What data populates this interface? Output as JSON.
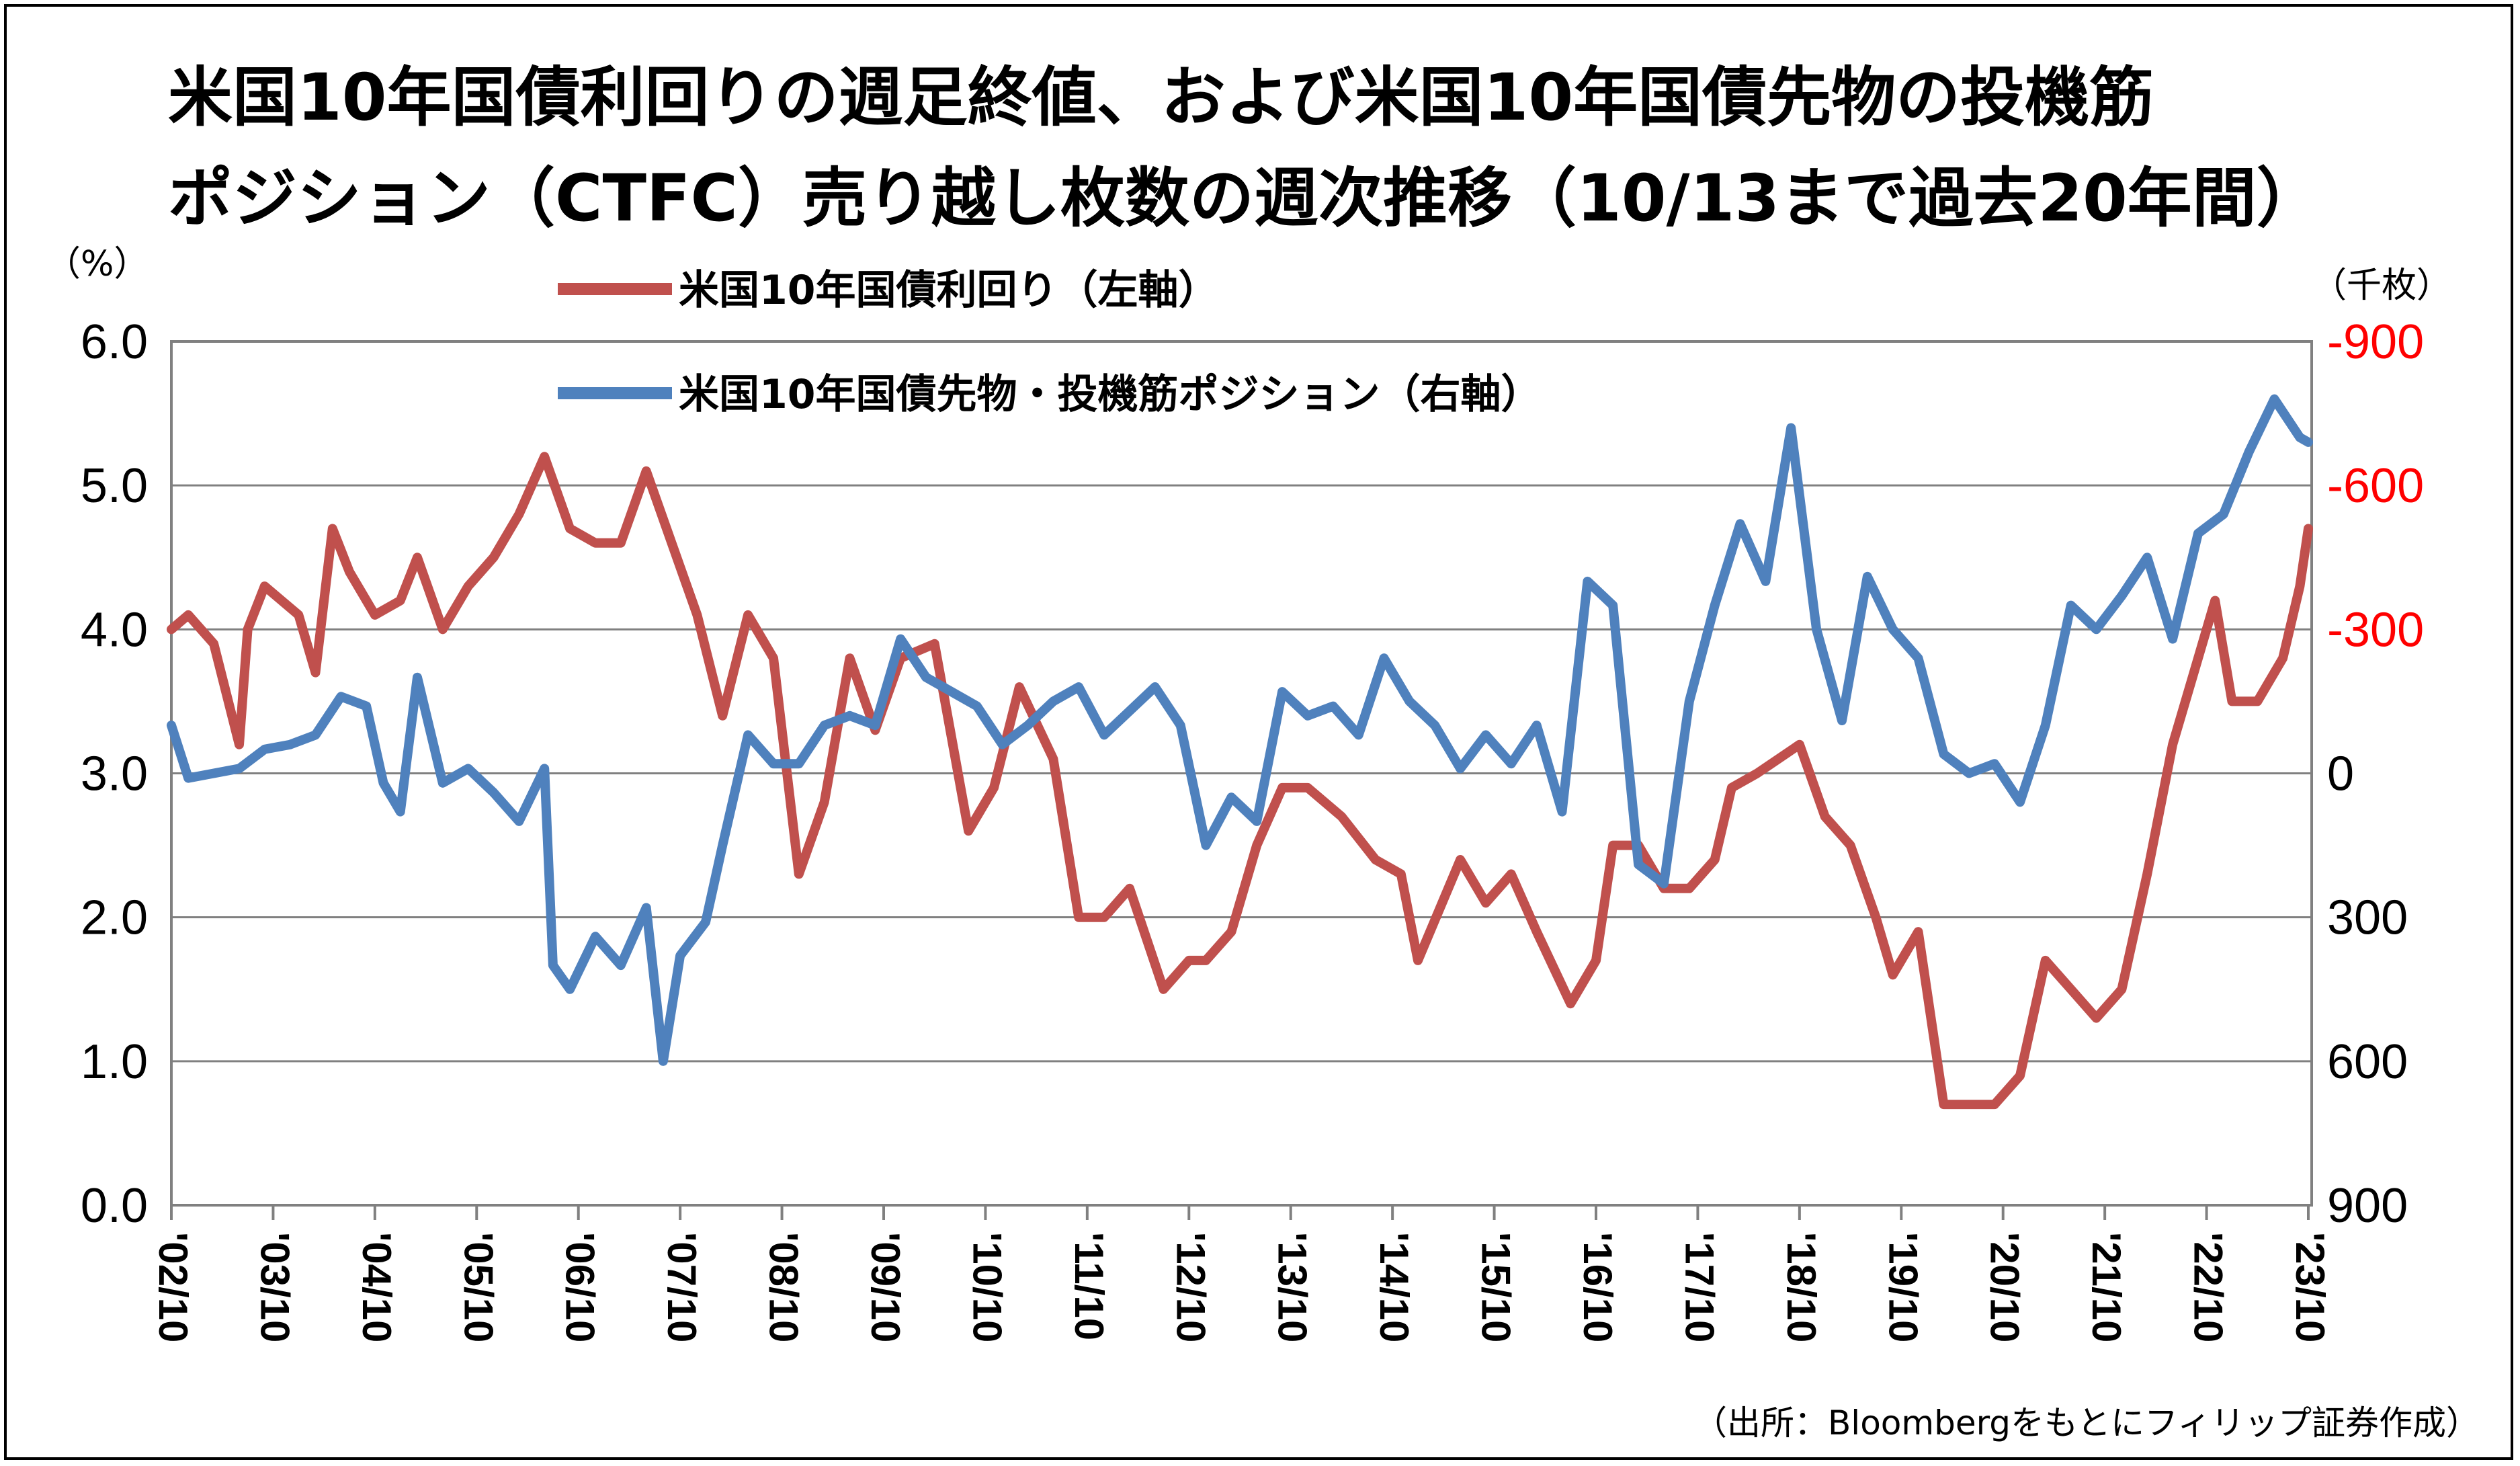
{
  "title_line1": "米国10年国債利回りの週足終値、および米国10年国債先物の投機筋",
  "title_line2": "ポジション（CTFC）売り越し枚数の週次推移（10/13まで過去20年間）",
  "source": "（出所：Bloombergをもとにフィリップ証券作成）",
  "chart_data": {
    "type": "line",
    "title": "米国10年国債利回りの週足終値、および米国10年国債先物の投機筋ポジション（CTFC）売り越し枚数の週次推移（10/13まで過去20年間）",
    "left_axis": {
      "unit_label": "（%）",
      "ticks": [
        "6.0",
        "5.0",
        "4.0",
        "3.0",
        "2.0",
        "1.0",
        "0.0"
      ],
      "range": [
        0,
        6
      ]
    },
    "right_axis": {
      "unit_label": "（千枚）",
      "ticks": [
        "-900",
        "-600",
        "-300",
        "0",
        "300",
        "600",
        "900"
      ],
      "range": [
        900,
        -900
      ],
      "inverted": true,
      "negative_tick_color": "#ff0000"
    },
    "x_ticks": [
      "'02/10",
      "'03/10",
      "'04/10",
      "'05/10",
      "'06/10",
      "'07/10",
      "'08/10",
      "'09/10",
      "'10/10",
      "'11/10",
      "'12/10",
      "'13/10",
      "'14/10",
      "'15/10",
      "'16/10",
      "'17/10",
      "'18/10",
      "'19/10",
      "'20/10",
      "'21/10",
      "'22/10",
      "'23/10"
    ],
    "legend_placement": "top-left",
    "grid": "horizontal",
    "series": [
      {
        "name": "米国10年国債利回り（左軸）",
        "axis": "left",
        "color": "#c0504d",
        "points": [
          [
            "2002-10",
            4.0
          ],
          [
            "2002-12",
            4.1
          ],
          [
            "2003-03",
            3.9
          ],
          [
            "2003-06",
            3.2
          ],
          [
            "2003-07",
            4.0
          ],
          [
            "2003-09",
            4.3
          ],
          [
            "2004-01",
            4.1
          ],
          [
            "2004-03",
            3.7
          ],
          [
            "2004-05",
            4.7
          ],
          [
            "2004-07",
            4.4
          ],
          [
            "2004-10",
            4.1
          ],
          [
            "2005-01",
            4.2
          ],
          [
            "2005-03",
            4.5
          ],
          [
            "2005-06",
            4.0
          ],
          [
            "2005-09",
            4.3
          ],
          [
            "2005-12",
            4.5
          ],
          [
            "2006-03",
            4.8
          ],
          [
            "2006-06",
            5.2
          ],
          [
            "2006-09",
            4.7
          ],
          [
            "2006-12",
            4.6
          ],
          [
            "2007-03",
            4.6
          ],
          [
            "2007-06",
            5.1
          ],
          [
            "2007-09",
            4.6
          ],
          [
            "2007-12",
            4.1
          ],
          [
            "2008-03",
            3.4
          ],
          [
            "2008-06",
            4.1
          ],
          [
            "2008-09",
            3.8
          ],
          [
            "2008-12",
            2.3
          ],
          [
            "2009-03",
            2.8
          ],
          [
            "2009-06",
            3.8
          ],
          [
            "2009-09",
            3.3
          ],
          [
            "2009-12",
            3.8
          ],
          [
            "2010-04",
            3.9
          ],
          [
            "2010-08",
            2.6
          ],
          [
            "2010-11",
            2.9
          ],
          [
            "2011-02",
            3.6
          ],
          [
            "2011-06",
            3.1
          ],
          [
            "2011-09",
            2.0
          ],
          [
            "2011-12",
            2.0
          ],
          [
            "2012-03",
            2.2
          ],
          [
            "2012-07",
            1.5
          ],
          [
            "2012-10",
            1.7
          ],
          [
            "2012-12",
            1.7
          ],
          [
            "2013-03",
            1.9
          ],
          [
            "2013-06",
            2.5
          ],
          [
            "2013-09",
            2.9
          ],
          [
            "2013-12",
            2.9
          ],
          [
            "2014-04",
            2.7
          ],
          [
            "2014-08",
            2.4
          ],
          [
            "2014-11",
            2.3
          ],
          [
            "2015-01",
            1.7
          ],
          [
            "2015-06",
            2.4
          ],
          [
            "2015-09",
            2.1
          ],
          [
            "2015-12",
            2.3
          ],
          [
            "2016-03",
            1.9
          ],
          [
            "2016-07",
            1.4
          ],
          [
            "2016-10",
            1.7
          ],
          [
            "2016-12",
            2.5
          ],
          [
            "2017-03",
            2.5
          ],
          [
            "2017-06",
            2.2
          ],
          [
            "2017-09",
            2.2
          ],
          [
            "2017-12",
            2.4
          ],
          [
            "2018-02",
            2.9
          ],
          [
            "2018-05",
            3.0
          ],
          [
            "2018-10",
            3.2
          ],
          [
            "2019-01",
            2.7
          ],
          [
            "2019-04",
            2.5
          ],
          [
            "2019-07",
            2.0
          ],
          [
            "2019-09",
            1.6
          ],
          [
            "2019-12",
            1.9
          ],
          [
            "2020-03",
            0.7
          ],
          [
            "2020-06",
            0.7
          ],
          [
            "2020-09",
            0.7
          ],
          [
            "2020-12",
            0.9
          ],
          [
            "2021-03",
            1.7
          ],
          [
            "2021-06",
            1.5
          ],
          [
            "2021-09",
            1.3
          ],
          [
            "2021-12",
            1.5
          ],
          [
            "2022-03",
            2.3
          ],
          [
            "2022-06",
            3.2
          ],
          [
            "2022-09",
            3.8
          ],
          [
            "2022-11",
            4.2
          ],
          [
            "2023-01",
            3.5
          ],
          [
            "2023-04",
            3.5
          ],
          [
            "2023-07",
            3.8
          ],
          [
            "2023-09",
            4.3
          ],
          [
            "2023-10",
            4.7
          ]
        ]
      },
      {
        "name": "米国10年国債先物・投機筋ポジション（右軸）",
        "axis": "right",
        "color": "#4f81bd",
        "points": [
          [
            "2002-10",
            -100
          ],
          [
            "2002-12",
            10
          ],
          [
            "2003-03",
            0
          ],
          [
            "2003-06",
            -10
          ],
          [
            "2003-09",
            -50
          ],
          [
            "2003-12",
            -60
          ],
          [
            "2004-03",
            -80
          ],
          [
            "2004-06",
            -160
          ],
          [
            "2004-09",
            -140
          ],
          [
            "2004-11",
            20
          ],
          [
            "2005-01",
            80
          ],
          [
            "2005-03",
            -200
          ],
          [
            "2005-06",
            20
          ],
          [
            "2005-09",
            -10
          ],
          [
            "2005-12",
            40
          ],
          [
            "2006-03",
            100
          ],
          [
            "2006-06",
            -10
          ],
          [
            "2006-07",
            400
          ],
          [
            "2006-09",
            450
          ],
          [
            "2006-12",
            340
          ],
          [
            "2007-03",
            400
          ],
          [
            "2007-06",
            280
          ],
          [
            "2007-08",
            600
          ],
          [
            "2007-10",
            380
          ],
          [
            "2008-01",
            310
          ],
          [
            "2008-03",
            150
          ],
          [
            "2008-06",
            -80
          ],
          [
            "2008-09",
            -20
          ],
          [
            "2008-12",
            -20
          ],
          [
            "2009-03",
            -100
          ],
          [
            "2009-06",
            -120
          ],
          [
            "2009-09",
            -100
          ],
          [
            "2009-12",
            -280
          ],
          [
            "2010-03",
            -200
          ],
          [
            "2010-06",
            -170
          ],
          [
            "2010-09",
            -140
          ],
          [
            "2010-12",
            -60
          ],
          [
            "2011-03",
            -100
          ],
          [
            "2011-06",
            -150
          ],
          [
            "2011-09",
            -180
          ],
          [
            "2011-12",
            -80
          ],
          [
            "2012-03",
            -130
          ],
          [
            "2012-06",
            -180
          ],
          [
            "2012-09",
            -100
          ],
          [
            "2012-12",
            150
          ],
          [
            "2013-03",
            50
          ],
          [
            "2013-06",
            100
          ],
          [
            "2013-09",
            -170
          ],
          [
            "2013-12",
            -120
          ],
          [
            "2014-03",
            -140
          ],
          [
            "2014-06",
            -80
          ],
          [
            "2014-09",
            -240
          ],
          [
            "2014-12",
            -150
          ],
          [
            "2015-03",
            -100
          ],
          [
            "2015-06",
            -10
          ],
          [
            "2015-09",
            -80
          ],
          [
            "2015-12",
            -20
          ],
          [
            "2016-03",
            -100
          ],
          [
            "2016-06",
            80
          ],
          [
            "2016-09",
            -400
          ],
          [
            "2016-12",
            -350
          ],
          [
            "2017-03",
            190
          ],
          [
            "2017-06",
            230
          ],
          [
            "2017-09",
            -150
          ],
          [
            "2017-12",
            -350
          ],
          [
            "2018-03",
            -520
          ],
          [
            "2018-06",
            -400
          ],
          [
            "2018-09",
            -720
          ],
          [
            "2018-12",
            -300
          ],
          [
            "2019-03",
            -110
          ],
          [
            "2019-06",
            -410
          ],
          [
            "2019-09",
            -300
          ],
          [
            "2019-12",
            -240
          ],
          [
            "2020-03",
            -40
          ],
          [
            "2020-06",
            0
          ],
          [
            "2020-09",
            -20
          ],
          [
            "2020-12",
            60
          ],
          [
            "2021-03",
            -100
          ],
          [
            "2021-06",
            -350
          ],
          [
            "2021-09",
            -300
          ],
          [
            "2021-12",
            -370
          ],
          [
            "2022-03",
            -450
          ],
          [
            "2022-06",
            -280
          ],
          [
            "2022-09",
            -500
          ],
          [
            "2022-12",
            -540
          ],
          [
            "2023-03",
            -670
          ],
          [
            "2023-06",
            -780
          ],
          [
            "2023-09",
            -700
          ],
          [
            "2023-10",
            -690
          ]
        ]
      }
    ]
  }
}
